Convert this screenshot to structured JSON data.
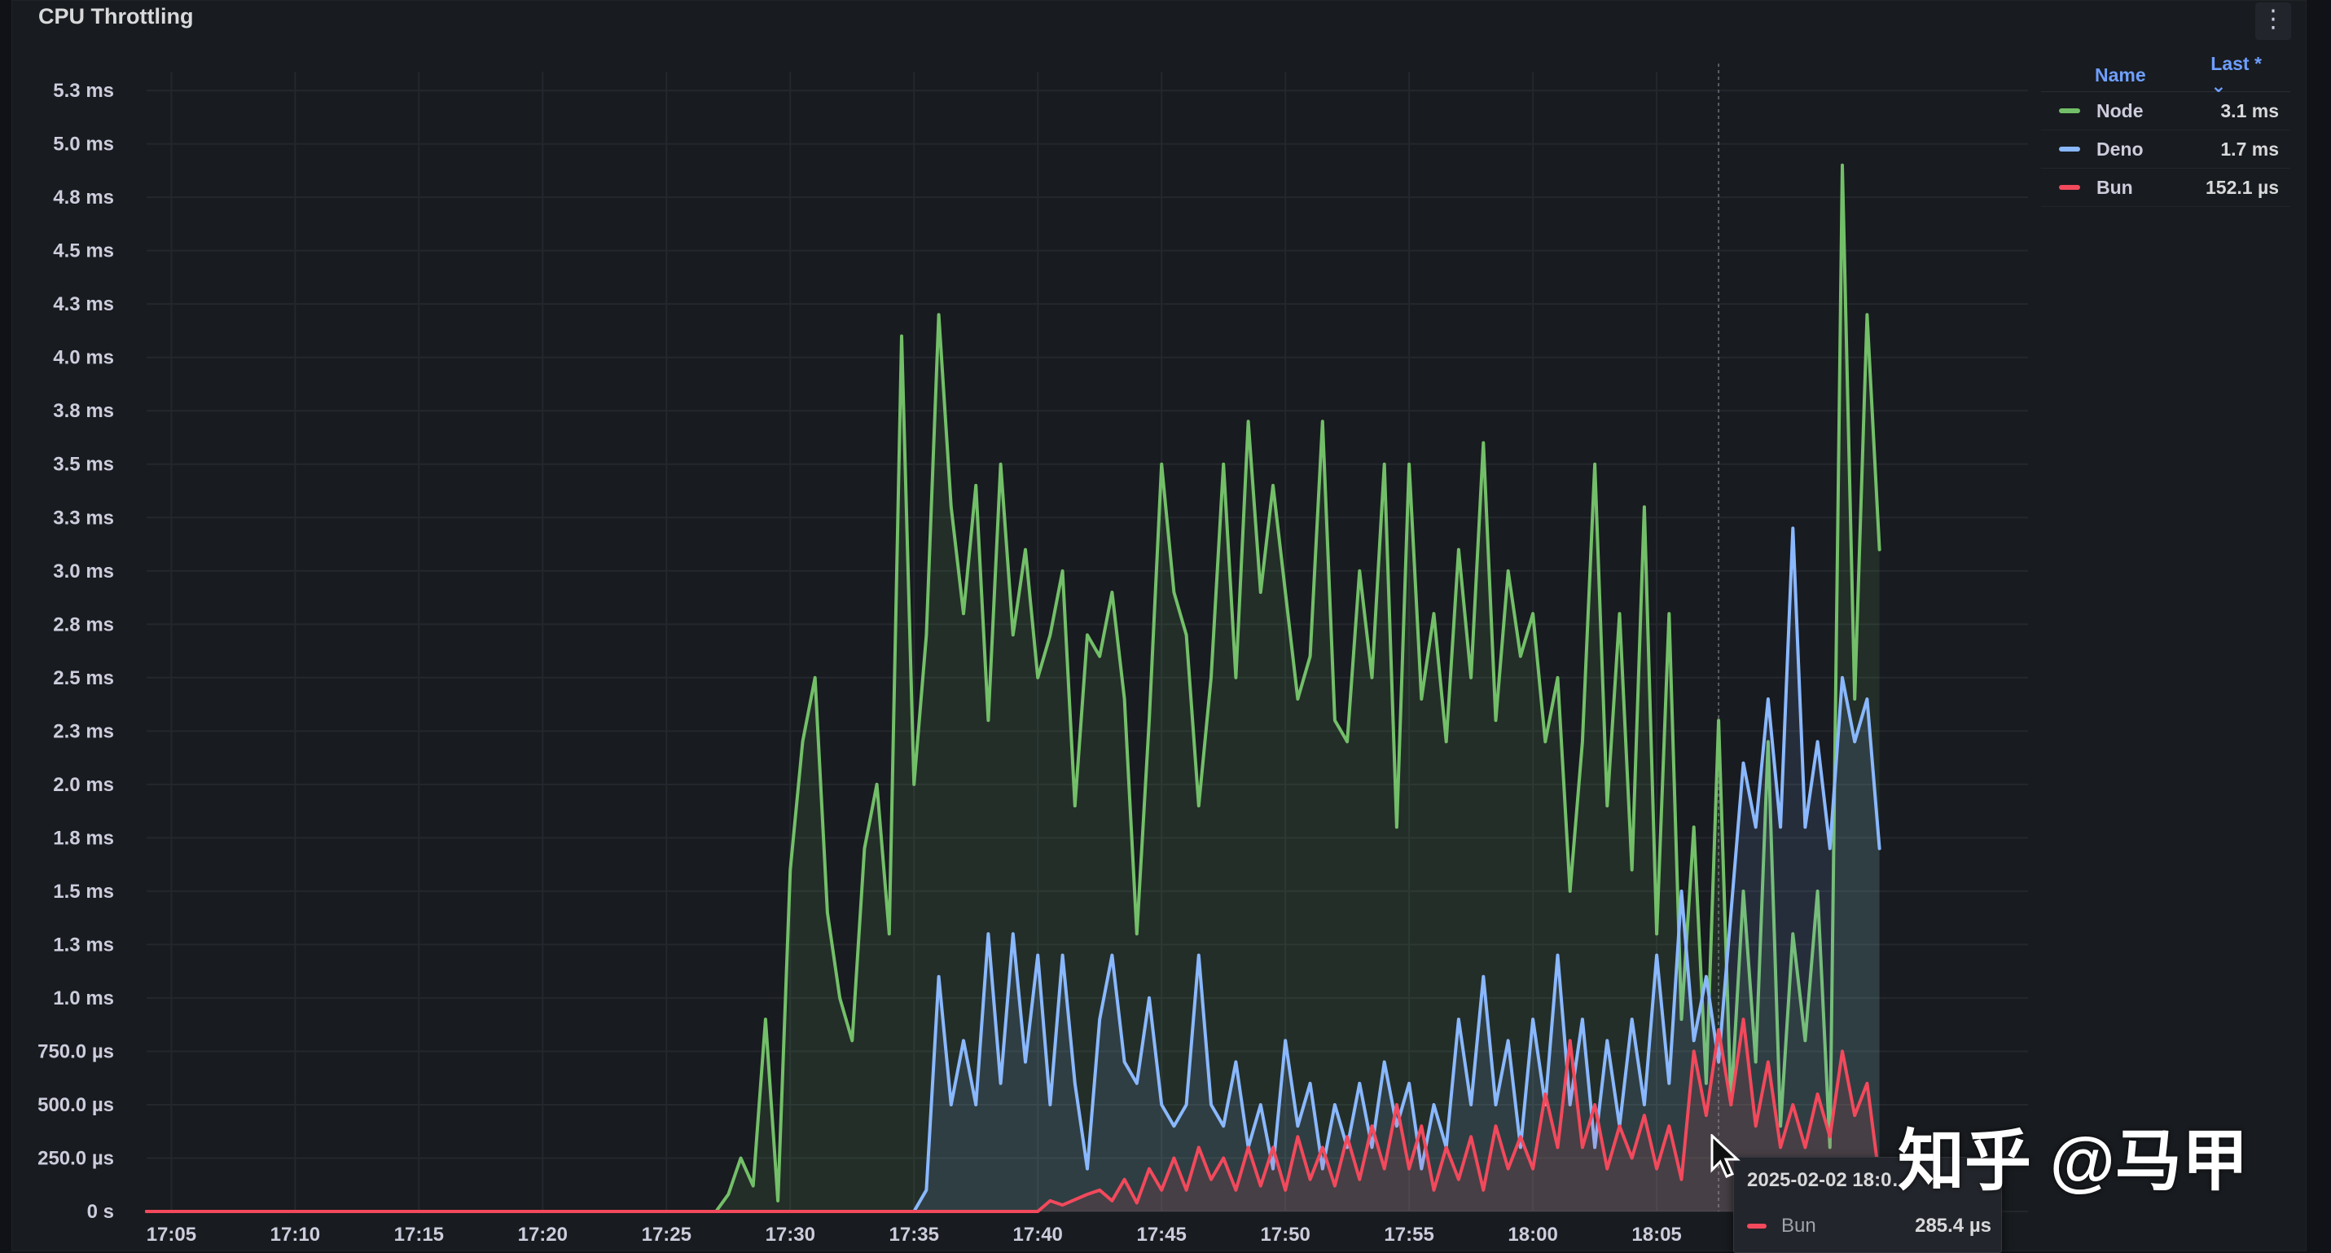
{
  "panel": {
    "title": "CPU Throttling",
    "menu_icon": "kebab-menu-icon"
  },
  "legend": {
    "header_name": "Name",
    "header_last": "Last * ⌄",
    "items": [
      {
        "name": "Node",
        "last": "3.1 ms",
        "color": "#73bf69"
      },
      {
        "name": "Deno",
        "last": "1.7 ms",
        "color": "#8ab8ff"
      },
      {
        "name": "Bun",
        "last": "152.1 µs",
        "color": "#f2495c"
      }
    ]
  },
  "tooltip": {
    "time": "2025-02-02 18:0…",
    "series": "Bun",
    "value": "285.4 µs"
  },
  "watermark": "知乎 @马甲",
  "chart_data": {
    "type": "line",
    "y_unit": "ms",
    "ylim": [
      0,
      5.3
    ],
    "y_ticks": [
      {
        "v": 0,
        "label": "0 s"
      },
      {
        "v": 0.25,
        "label": "250.0 µs"
      },
      {
        "v": 0.5,
        "label": "500.0 µs"
      },
      {
        "v": 0.75,
        "label": "750.0 µs"
      },
      {
        "v": 1.0,
        "label": "1.0 ms"
      },
      {
        "v": 1.25,
        "label": "1.3 ms"
      },
      {
        "v": 1.5,
        "label": "1.5 ms"
      },
      {
        "v": 1.75,
        "label": "1.8 ms"
      },
      {
        "v": 2.0,
        "label": "2.0 ms"
      },
      {
        "v": 2.25,
        "label": "2.3 ms"
      },
      {
        "v": 2.5,
        "label": "2.5 ms"
      },
      {
        "v": 2.75,
        "label": "2.8 ms"
      },
      {
        "v": 3.0,
        "label": "3.0 ms"
      },
      {
        "v": 3.25,
        "label": "3.3 ms"
      },
      {
        "v": 3.5,
        "label": "3.5 ms"
      },
      {
        "v": 3.75,
        "label": "3.8 ms"
      },
      {
        "v": 4.0,
        "label": "4.0 ms"
      },
      {
        "v": 4.25,
        "label": "4.3 ms"
      },
      {
        "v": 4.5,
        "label": "4.5 ms"
      },
      {
        "v": 4.75,
        "label": "4.8 ms"
      },
      {
        "v": 5.0,
        "label": "5.0 ms"
      },
      {
        "v": 5.25,
        "label": "5.3 ms"
      }
    ],
    "x_ticks": [
      "17:05",
      "17:10",
      "17:15",
      "17:20",
      "17:25",
      "17:30",
      "17:35",
      "17:40",
      "17:45",
      "17:50",
      "17:55",
      "18:00",
      "18:05"
    ],
    "x_start": "17:04",
    "x_end": "18:20",
    "grid": true,
    "legend_position": "right",
    "series": [
      {
        "name": "Node",
        "color": "#73bf69",
        "points": [
          [
            "17:04",
            0
          ],
          [
            "17:27",
            0
          ],
          [
            "17:27.5",
            0.08
          ],
          [
            "17:28",
            0.25
          ],
          [
            "17:28.5",
            0.12
          ],
          [
            "17:29",
            0.9
          ],
          [
            "17:29.5",
            0.05
          ],
          [
            "17:30",
            1.6
          ],
          [
            "17:30.5",
            2.2
          ],
          [
            "17:31",
            2.5
          ],
          [
            "17:31.5",
            1.4
          ],
          [
            "17:32",
            1.0
          ],
          [
            "17:32.5",
            0.8
          ],
          [
            "17:33",
            1.7
          ],
          [
            "17:33.5",
            2.0
          ],
          [
            "17:34",
            1.3
          ],
          [
            "17:34.5",
            4.1
          ],
          [
            "17:35",
            2.0
          ],
          [
            "17:35.5",
            2.7
          ],
          [
            "17:36",
            4.2
          ],
          [
            "17:36.5",
            3.3
          ],
          [
            "17:37",
            2.8
          ],
          [
            "17:37.5",
            3.4
          ],
          [
            "17:38",
            2.3
          ],
          [
            "17:38.5",
            3.5
          ],
          [
            "17:39",
            2.7
          ],
          [
            "17:39.5",
            3.1
          ],
          [
            "17:40",
            2.5
          ],
          [
            "17:40.5",
            2.7
          ],
          [
            "17:41",
            3.0
          ],
          [
            "17:41.5",
            1.9
          ],
          [
            "17:42",
            2.7
          ],
          [
            "17:42.5",
            2.6
          ],
          [
            "17:43",
            2.9
          ],
          [
            "17:43.5",
            2.4
          ],
          [
            "17:44",
            1.3
          ],
          [
            "17:44.5",
            2.3
          ],
          [
            "17:45",
            3.5
          ],
          [
            "17:45.5",
            2.9
          ],
          [
            "17:46",
            2.7
          ],
          [
            "17:46.5",
            1.9
          ],
          [
            "17:47",
            2.5
          ],
          [
            "17:47.5",
            3.5
          ],
          [
            "17:48",
            2.5
          ],
          [
            "17:48.5",
            3.7
          ],
          [
            "17:49",
            2.9
          ],
          [
            "17:49.5",
            3.4
          ],
          [
            "17:50",
            2.9
          ],
          [
            "17:50.5",
            2.4
          ],
          [
            "17:51",
            2.6
          ],
          [
            "17:51.5",
            3.7
          ],
          [
            "17:52",
            2.3
          ],
          [
            "17:52.5",
            2.2
          ],
          [
            "17:53",
            3.0
          ],
          [
            "17:53.5",
            2.5
          ],
          [
            "17:54",
            3.5
          ],
          [
            "17:54.5",
            1.8
          ],
          [
            "17:55",
            3.5
          ],
          [
            "17:55.5",
            2.4
          ],
          [
            "17:56",
            2.8
          ],
          [
            "17:56.5",
            2.2
          ],
          [
            "17:57",
            3.1
          ],
          [
            "17:57.5",
            2.5
          ],
          [
            "17:58",
            3.6
          ],
          [
            "17:58.5",
            2.3
          ],
          [
            "17:59",
            3.0
          ],
          [
            "17:59.5",
            2.6
          ],
          [
            "18:00",
            2.8
          ],
          [
            "18:00.5",
            2.2
          ],
          [
            "18:01",
            2.5
          ],
          [
            "18:01.5",
            1.5
          ],
          [
            "18:02",
            2.2
          ],
          [
            "18:02.5",
            3.5
          ],
          [
            "18:03",
            1.9
          ],
          [
            "18:03.5",
            2.8
          ],
          [
            "18:04",
            1.6
          ],
          [
            "18:04.5",
            3.3
          ],
          [
            "18:05",
            1.3
          ],
          [
            "18:05.5",
            2.8
          ],
          [
            "18:06",
            0.9
          ],
          [
            "18:06.5",
            1.8
          ],
          [
            "18:07",
            0.6
          ],
          [
            "18:07.5",
            2.3
          ],
          [
            "18:08",
            0.5
          ],
          [
            "18:08.5",
            1.5
          ],
          [
            "18:09",
            0.7
          ],
          [
            "18:09.5",
            2.2
          ],
          [
            "18:10",
            0.4
          ],
          [
            "18:10.5",
            1.3
          ],
          [
            "18:11",
            0.8
          ],
          [
            "18:11.5",
            1.5
          ],
          [
            "18:12",
            0.3
          ],
          [
            "18:12.5",
            4.9
          ],
          [
            "18:13",
            2.4
          ],
          [
            "18:13.5",
            4.2
          ],
          [
            "18:14",
            3.1
          ]
        ]
      },
      {
        "name": "Deno",
        "color": "#8ab8ff",
        "points": [
          [
            "17:04",
            0
          ],
          [
            "17:35",
            0
          ],
          [
            "17:35.5",
            0.1
          ],
          [
            "17:36",
            1.1
          ],
          [
            "17:36.5",
            0.5
          ],
          [
            "17:37",
            0.8
          ],
          [
            "17:37.5",
            0.5
          ],
          [
            "17:38",
            1.3
          ],
          [
            "17:38.5",
            0.6
          ],
          [
            "17:39",
            1.3
          ],
          [
            "17:39.5",
            0.7
          ],
          [
            "17:40",
            1.2
          ],
          [
            "17:40.5",
            0.5
          ],
          [
            "17:41",
            1.2
          ],
          [
            "17:41.5",
            0.6
          ],
          [
            "17:42",
            0.2
          ],
          [
            "17:42.5",
            0.9
          ],
          [
            "17:43",
            1.2
          ],
          [
            "17:43.5",
            0.7
          ],
          [
            "17:44",
            0.6
          ],
          [
            "17:44.5",
            1.0
          ],
          [
            "17:45",
            0.5
          ],
          [
            "17:45.5",
            0.4
          ],
          [
            "17:46",
            0.5
          ],
          [
            "17:46.5",
            1.2
          ],
          [
            "17:47",
            0.5
          ],
          [
            "17:47.5",
            0.4
          ],
          [
            "17:48",
            0.7
          ],
          [
            "17:48.5",
            0.3
          ],
          [
            "17:49",
            0.5
          ],
          [
            "17:49.5",
            0.2
          ],
          [
            "17:50",
            0.8
          ],
          [
            "17:50.5",
            0.4
          ],
          [
            "17:51",
            0.6
          ],
          [
            "17:51.5",
            0.2
          ],
          [
            "17:52",
            0.5
          ],
          [
            "17:52.5",
            0.3
          ],
          [
            "17:53",
            0.6
          ],
          [
            "17:53.5",
            0.3
          ],
          [
            "17:54",
            0.7
          ],
          [
            "17:54.5",
            0.4
          ],
          [
            "17:55",
            0.6
          ],
          [
            "17:55.5",
            0.2
          ],
          [
            "17:56",
            0.5
          ],
          [
            "17:56.5",
            0.3
          ],
          [
            "17:57",
            0.9
          ],
          [
            "17:57.5",
            0.5
          ],
          [
            "17:58",
            1.1
          ],
          [
            "17:58.5",
            0.5
          ],
          [
            "17:59",
            0.8
          ],
          [
            "17:59.5",
            0.3
          ],
          [
            "18:00",
            0.9
          ],
          [
            "18:00.5",
            0.5
          ],
          [
            "18:01",
            1.2
          ],
          [
            "18:01.5",
            0.5
          ],
          [
            "18:02",
            0.9
          ],
          [
            "18:02.5",
            0.3
          ],
          [
            "18:03",
            0.8
          ],
          [
            "18:03.5",
            0.4
          ],
          [
            "18:04",
            0.9
          ],
          [
            "18:04.5",
            0.5
          ],
          [
            "18:05",
            1.2
          ],
          [
            "18:05.5",
            0.6
          ],
          [
            "18:06",
            1.5
          ],
          [
            "18:06.5",
            0.8
          ],
          [
            "18:07",
            1.1
          ],
          [
            "18:07.5",
            0.7
          ],
          [
            "18:08",
            1.4
          ],
          [
            "18:08.5",
            2.1
          ],
          [
            "18:09",
            1.8
          ],
          [
            "18:09.5",
            2.4
          ],
          [
            "18:10",
            1.8
          ],
          [
            "18:10.5",
            3.2
          ],
          [
            "18:11",
            1.8
          ],
          [
            "18:11.5",
            2.2
          ],
          [
            "18:12",
            1.7
          ],
          [
            "18:12.5",
            2.5
          ],
          [
            "18:13",
            2.2
          ],
          [
            "18:13.5",
            2.4
          ],
          [
            "18:14",
            1.7
          ]
        ]
      },
      {
        "name": "Bun",
        "color": "#f2495c",
        "points": [
          [
            "17:04",
            0
          ],
          [
            "17:40",
            0
          ],
          [
            "17:40.5",
            0.05
          ],
          [
            "17:41",
            0.03
          ],
          [
            "17:42",
            0.08
          ],
          [
            "17:42.5",
            0.1
          ],
          [
            "17:43",
            0.05
          ],
          [
            "17:43.5",
            0.15
          ],
          [
            "17:44",
            0.04
          ],
          [
            "17:44.5",
            0.2
          ],
          [
            "17:45",
            0.1
          ],
          [
            "17:45.5",
            0.25
          ],
          [
            "17:46",
            0.1
          ],
          [
            "17:46.5",
            0.3
          ],
          [
            "17:47",
            0.15
          ],
          [
            "17:47.5",
            0.25
          ],
          [
            "17:48",
            0.1
          ],
          [
            "17:48.5",
            0.3
          ],
          [
            "17:49",
            0.12
          ],
          [
            "17:49.5",
            0.3
          ],
          [
            "17:50",
            0.1
          ],
          [
            "17:50.5",
            0.35
          ],
          [
            "17:51",
            0.15
          ],
          [
            "17:51.5",
            0.3
          ],
          [
            "17:52",
            0.12
          ],
          [
            "17:52.5",
            0.35
          ],
          [
            "17:53",
            0.15
          ],
          [
            "17:53.5",
            0.4
          ],
          [
            "17:54",
            0.2
          ],
          [
            "17:54.5",
            0.5
          ],
          [
            "17:55",
            0.2
          ],
          [
            "17:55.5",
            0.4
          ],
          [
            "17:56",
            0.1
          ],
          [
            "17:56.5",
            0.3
          ],
          [
            "17:57",
            0.15
          ],
          [
            "17:57.5",
            0.35
          ],
          [
            "17:58",
            0.1
          ],
          [
            "17:58.5",
            0.4
          ],
          [
            "17:59",
            0.2
          ],
          [
            "17:59.5",
            0.35
          ],
          [
            "18:00",
            0.2
          ],
          [
            "18:00.5",
            0.55
          ],
          [
            "18:01",
            0.3
          ],
          [
            "18:01.5",
            0.8
          ],
          [
            "18:02",
            0.3
          ],
          [
            "18:02.5",
            0.5
          ],
          [
            "18:03",
            0.2
          ],
          [
            "18:03.5",
            0.4
          ],
          [
            "18:04",
            0.25
          ],
          [
            "18:04.5",
            0.45
          ],
          [
            "18:05",
            0.2
          ],
          [
            "18:05.5",
            0.4
          ],
          [
            "18:06",
            0.15
          ],
          [
            "18:06.5",
            0.75
          ],
          [
            "18:07",
            0.45
          ],
          [
            "18:07.5",
            0.85
          ],
          [
            "18:08",
            0.5
          ],
          [
            "18:08.5",
            0.9
          ],
          [
            "18:09",
            0.4
          ],
          [
            "18:09.5",
            0.7
          ],
          [
            "18:10",
            0.3
          ],
          [
            "18:10.5",
            0.5
          ],
          [
            "18:11",
            0.3
          ],
          [
            "18:11.5",
            0.55
          ],
          [
            "18:12",
            0.35
          ],
          [
            "18:12.5",
            0.75
          ],
          [
            "18:13",
            0.45
          ],
          [
            "18:13.5",
            0.6
          ],
          [
            "18:14",
            0.15
          ]
        ]
      }
    ]
  }
}
